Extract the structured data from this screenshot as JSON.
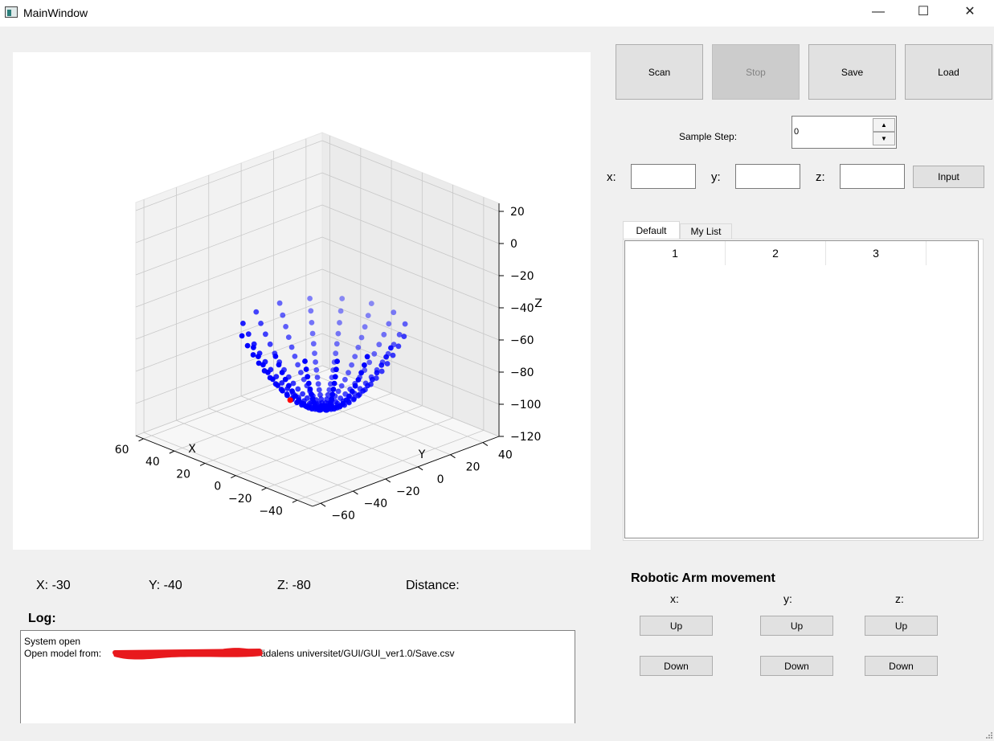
{
  "window": {
    "title": "MainWindow",
    "minimize": "—",
    "maximize": "☐",
    "close": "✕"
  },
  "toolbar": {
    "scan": "Scan",
    "stop": "Stop",
    "save": "Save",
    "load": "Load"
  },
  "sample_step": {
    "label": "Sample Step:",
    "value": "0",
    "up_icon": "▲",
    "down_icon": "▼"
  },
  "coord_input": {
    "x_label": "x:",
    "y_label": "y:",
    "z_label": "z:",
    "x_value": "",
    "y_value": "",
    "z_value": "",
    "button": "Input"
  },
  "tabs": [
    {
      "label": "Default",
      "active": true
    },
    {
      "label": "My List",
      "active": false
    }
  ],
  "table": {
    "columns": [
      "1",
      "2",
      "3"
    ],
    "rows": []
  },
  "readout": {
    "x": "X: -30",
    "y": "Y: -40",
    "z": "Z: -80",
    "distance": "Distance:"
  },
  "log": {
    "title": "Log:",
    "lines": [
      "System open",
      "Open model from:",
      "ädalens universitet/GUI/GUI_ver1.0/Save.csv"
    ]
  },
  "robot": {
    "title": "Robotic Arm movement",
    "axes": [
      {
        "label": "x:",
        "up": "Up",
        "down": "Down"
      },
      {
        "label": "y:",
        "up": "Up",
        "down": "Down"
      },
      {
        "label": "z:",
        "up": "Up",
        "down": "Down"
      }
    ]
  },
  "chart_data": {
    "type": "scatter",
    "projection": "3d",
    "title": "",
    "xlabel": "X",
    "ylabel": "Y",
    "zlabel": "Z",
    "xticks": [
      "−40",
      "−20",
      "0",
      "20",
      "40",
      "60"
    ],
    "yticks": [
      "−60",
      "−40",
      "−20",
      "0",
      "20",
      "40"
    ],
    "zticks": [
      "20",
      "0",
      "−20",
      "−40",
      "−60",
      "−80",
      "−100",
      "−120"
    ],
    "xlim": [
      -50,
      65
    ],
    "ylim": [
      -65,
      50
    ],
    "zlim": [
      -120,
      25
    ],
    "grid": true,
    "series": [
      {
        "description": "paraboloid surface z = 0.035*(x^2+y^2) - 100 sampled along 8 meridians",
        "color": "#0000ff",
        "shape": "paraboloid",
        "a": 0.035,
        "z0": -100,
        "meridians": 8,
        "radius_max": 37,
        "points_per_meridian": 30
      },
      {
        "color": "#ff0000",
        "points": [
          {
            "x": -30,
            "y": -40,
            "z": -80
          }
        ]
      }
    ],
    "colors": {
      "series": "#0000ff",
      "highlight": "#ff0000"
    }
  }
}
